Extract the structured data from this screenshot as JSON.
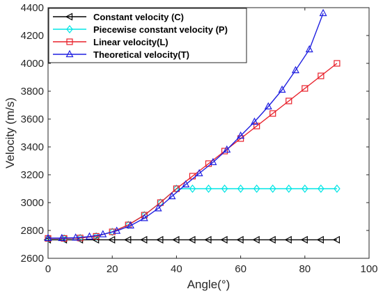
{
  "chart_data": {
    "type": "line",
    "title": "",
    "xlabel": "Angle(°)",
    "ylabel": "Velocity (m/s)",
    "xlim": [
      0,
      100
    ],
    "ylim": [
      2600,
      4400
    ],
    "xticks": [
      0,
      20,
      40,
      60,
      80,
      100
    ],
    "yticks": [
      2600,
      2800,
      3000,
      3200,
      3400,
      3600,
      3800,
      4000,
      4200,
      4400
    ],
    "grid": false,
    "legend_position": "top-left",
    "series": [
      {
        "name": "Constant velocity (C)",
        "color": "#000000",
        "marker": "triangle-left",
        "x": [
          0,
          5,
          10,
          15,
          20,
          25,
          30,
          35,
          40,
          45,
          50,
          55,
          60,
          65,
          70,
          75,
          80,
          85,
          90
        ],
        "y": [
          2733,
          2733,
          2733,
          2733,
          2733,
          2733,
          2733,
          2733,
          2733,
          2733,
          2733,
          2733,
          2733,
          2733,
          2733,
          2733,
          2733,
          2733,
          2733
        ]
      },
      {
        "name": "Piecewise constant velocity (P)",
        "color": "#00e5e5",
        "marker": "diamond",
        "x": [
          0,
          5,
          10,
          15,
          20,
          25,
          30,
          35,
          40,
          45,
          50,
          55,
          60,
          65,
          70,
          75,
          80,
          85,
          90
        ],
        "y": [
          2743,
          2743,
          2746,
          2758,
          2790,
          2840,
          2910,
          3000,
          3100,
          3100,
          3100,
          3100,
          3100,
          3100,
          3100,
          3100,
          3100,
          3100,
          3100
        ]
      },
      {
        "name": "Linear velocity(L)",
        "color": "#e8202a",
        "marker": "square",
        "x": [
          0,
          5,
          10,
          15,
          20,
          25,
          30,
          35,
          40,
          45,
          50,
          55,
          60,
          65,
          70,
          75,
          80,
          85,
          90
        ],
        "y": [
          2743,
          2743,
          2746,
          2758,
          2790,
          2840,
          2910,
          3000,
          3100,
          3190,
          3280,
          3370,
          3460,
          3550,
          3640,
          3730,
          3820,
          3910,
          4000
        ]
      },
      {
        "name": "Theoretical velocity(T)",
        "color": "#1f1fe0",
        "marker": "triangle-up",
        "x": [
          0,
          4.3,
          8.6,
          12.9,
          17.1,
          21.4,
          25.7,
          30,
          34.3,
          38.6,
          42.9,
          47.1,
          51.4,
          55.7,
          60,
          64.3,
          68.6,
          72.9,
          77.1,
          81.4,
          85.7
        ],
        "y": [
          2745,
          2745,
          2748,
          2756,
          2772,
          2797,
          2835,
          2888,
          2958,
          3045,
          3130,
          3210,
          3290,
          3380,
          3480,
          3580,
          3690,
          3810,
          3950,
          4100,
          4360
        ]
      }
    ]
  }
}
